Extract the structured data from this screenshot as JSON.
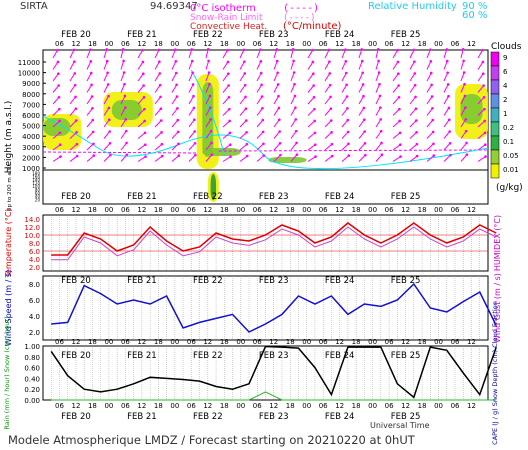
{
  "header": {
    "station": "SIRTA",
    "coord": "94.69347",
    "legend_isotherm": "0°C isotherm",
    "legend_isotherm_sym": "(----)",
    "legend_snowrain": "Snow-Rain Limit",
    "legend_snowrain_sym": "(----)",
    "legend_convective": "Convective Heat.",
    "legend_convective_sym": "(°C/minute)",
    "rh_label": "Relative Humidity",
    "rh_90": "90 %",
    "rh_60": "60 %"
  },
  "colors": {
    "magenta": "#ff00ff",
    "cyan": "#00e5ff",
    "red": "#e00000",
    "blue": "#1010d0",
    "green": "#22bb22",
    "yellow": "#f0f000",
    "gray": "#999999"
  },
  "time_axis": {
    "days": [
      "FEB 20",
      "FEB 21",
      "FEB 22",
      "FEB 23",
      "FEB 24",
      "FEB 25"
    ],
    "hours": [
      "06",
      "12",
      "18",
      "00"
    ],
    "title": "Universal Time"
  },
  "footer": {
    "text": "Modele Atmospherique LMDZ / Forecast starting on 20210220 at 0hUT"
  },
  "chart_data": [
    {
      "type": "heatmap",
      "title": "Clouds",
      "ylabel": "Height (m a.s.l.)",
      "ylabel_low": "Up to 200 m a.s.l.",
      "yticks_high": [
        "11000",
        "10000",
        "9000",
        "8000",
        "7000",
        "6000",
        "5000",
        "4000",
        "3000",
        "2000",
        "1000"
      ],
      "yticks_low": [
        "180",
        "160",
        "140",
        "120",
        "100",
        "80",
        "60",
        "40",
        "20"
      ],
      "colorbar_labels": [
        "9",
        "6",
        "4",
        "2",
        "1",
        "0.2",
        "0.1",
        "0.05",
        "0.01"
      ],
      "colorbar_colors": [
        "#f000f0",
        "#c040f0",
        "#9060f0",
        "#6090e0",
        "#40b0c0",
        "#40c080",
        "#30b040",
        "#90d030",
        "#f0f000"
      ],
      "colorbar_unit": "(g/kg)"
    },
    {
      "type": "line",
      "ylabel": "Temperature (°C)",
      "ylabel_right": "HUMIDEX (°C)",
      "yticks": [
        "14.0",
        "12.0",
        "10.0",
        "8.0",
        "6.0",
        "4.0",
        "2.0"
      ],
      "ylim": [
        1,
        15
      ],
      "x_hours": [
        0,
        6,
        12,
        18,
        24,
        30,
        36,
        42,
        48,
        54,
        60,
        66,
        72,
        78,
        84,
        90,
        96,
        102,
        108,
        114,
        120,
        126,
        132,
        138,
        144,
        150,
        156,
        162
      ],
      "series": [
        {
          "values": [
            5,
            5,
            10.5,
            9,
            6,
            7.5,
            12,
            8.5,
            6,
            7,
            10.5,
            9,
            8.5,
            10,
            12.5,
            11,
            8,
            9.5,
            13,
            10,
            8,
            10,
            13,
            10,
            8,
            9.5,
            12.5,
            10.5
          ]
        },
        {
          "values": [
            3.8,
            3.8,
            9.5,
            8,
            4.8,
            6.3,
            11,
            7.5,
            4.8,
            5.8,
            9.5,
            8,
            7.4,
            8.8,
            11.5,
            10,
            7,
            8.5,
            12,
            9,
            7,
            9,
            12,
            9,
            7,
            8.5,
            11.5,
            9.5
          ]
        }
      ]
    },
    {
      "type": "line",
      "ylabel": "Wind Speed (m / s)",
      "ylabel_right": "Wind Gust (m / s)",
      "yticks": [
        "8.0",
        "6.0",
        "4.0",
        "2.0"
      ],
      "ylim": [
        1,
        9
      ],
      "x_hours": [
        0,
        6,
        12,
        18,
        24,
        30,
        36,
        42,
        48,
        54,
        60,
        66,
        72,
        78,
        84,
        90,
        96,
        102,
        108,
        114,
        120,
        126,
        132,
        138,
        144,
        150,
        156,
        162
      ],
      "series": [
        {
          "values": [
            3,
            3.2,
            7.8,
            6.8,
            5.5,
            6,
            5.5,
            6.5,
            2.5,
            3.2,
            3.7,
            4.2,
            2,
            3,
            4.2,
            6.5,
            5.5,
            6.5,
            4.2,
            5.5,
            5.2,
            6,
            8,
            5,
            4.5,
            5.8,
            7,
            2.8
          ]
        }
      ]
    },
    {
      "type": "line",
      "ylabel_left": "Rain (mm / hour) Snow (cm / hour)",
      "ylabel_right": "CAPE (J / g) Snow Depth (cm) Cloud Fraction",
      "yticks": [
        "1.00",
        "0.80",
        "0.60",
        "0.40",
        "0.20",
        "0.00"
      ],
      "ylim": [
        0,
        1
      ],
      "x_hours": [
        0,
        6,
        12,
        18,
        24,
        30,
        36,
        42,
        48,
        54,
        60,
        66,
        72,
        78,
        84,
        90,
        96,
        102,
        108,
        114,
        120,
        126,
        132,
        138,
        144,
        150,
        156,
        162
      ],
      "series": [
        {
          "values": [
            0.9,
            0.45,
            0.2,
            0.15,
            0.2,
            0.3,
            0.42,
            0.4,
            0.38,
            0.35,
            0.25,
            0.2,
            0.3,
            0.99,
            0.98,
            0.96,
            0.6,
            0.1,
            0.98,
            0.98,
            0.98,
            0.3,
            0.05,
            0.98,
            0.92,
            0.5,
            0.1,
            0.98
          ]
        },
        {
          "values": [
            0,
            0,
            0,
            0,
            0,
            0,
            0,
            0,
            0,
            0,
            0,
            0,
            0,
            0.15,
            0,
            0,
            0,
            0,
            0,
            0,
            0,
            0,
            0,
            0,
            0,
            0,
            0,
            0
          ]
        }
      ]
    }
  ]
}
